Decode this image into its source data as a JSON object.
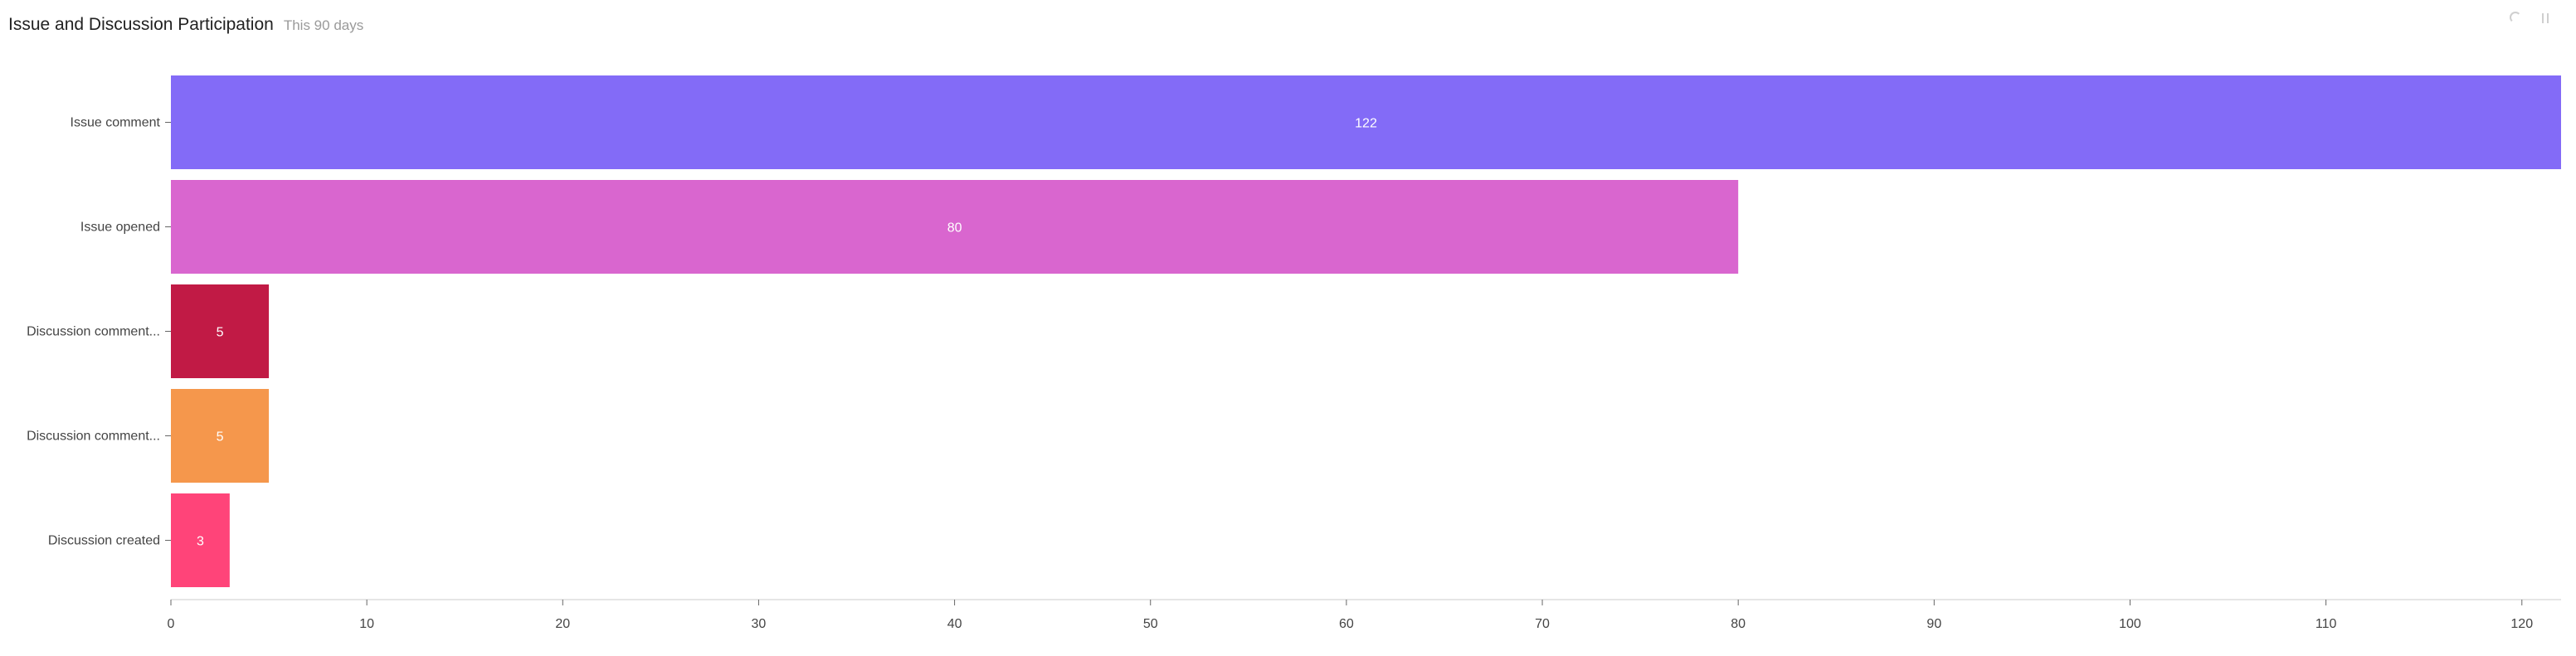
{
  "header": {
    "title": "Issue and Discussion Participation",
    "subtitle": "This 90 days"
  },
  "toolbar": {
    "icons": [
      "refresh-icon",
      "more-icon"
    ]
  },
  "chart_data": {
    "type": "bar",
    "orientation": "horizontal",
    "categories": [
      "Issue comment",
      "Issue opened",
      "Discussion comment...",
      "Discussion comment...",
      "Discussion created"
    ],
    "values": [
      122,
      80,
      5,
      5,
      3
    ],
    "colors": [
      "#836bf7",
      "#d966cf",
      "#c11a45",
      "#f5974c",
      "#ff4479"
    ],
    "xlim": [
      0,
      122
    ],
    "xticks": [
      0,
      10,
      20,
      30,
      40,
      50,
      60,
      70,
      80,
      90,
      100,
      110,
      120
    ],
    "grid": false,
    "legend": "none"
  }
}
